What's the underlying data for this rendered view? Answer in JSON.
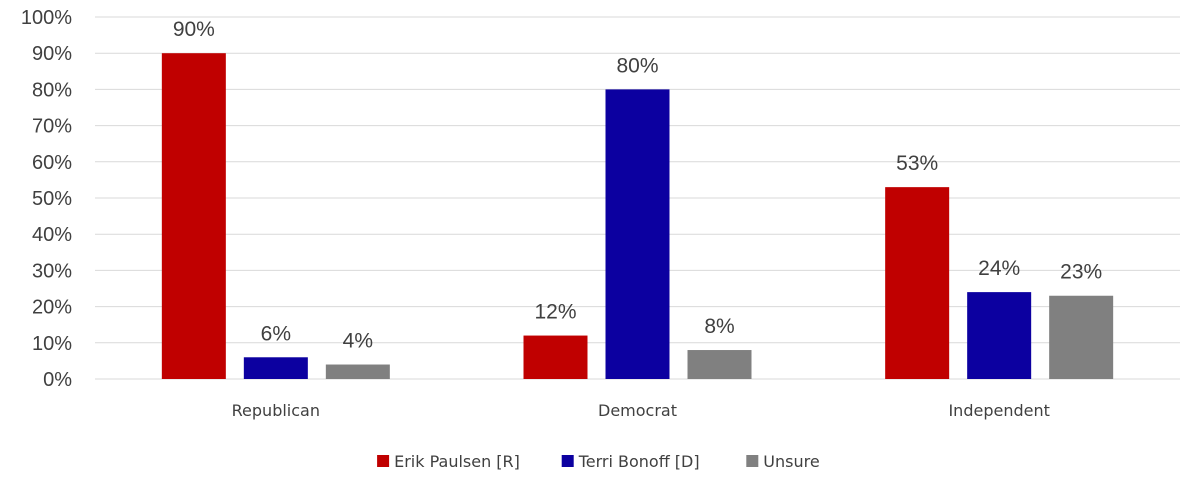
{
  "chart_data": {
    "type": "bar",
    "categories": [
      "Republican",
      "Democrat",
      "Independent"
    ],
    "series": [
      {
        "name": "Erik Paulsen [R]",
        "color": "#c00000",
        "values": [
          90,
          12,
          53
        ],
        "labels": [
          "90%",
          "12%",
          "53%"
        ]
      },
      {
        "name": "Terri Bonoff [D]",
        "color": "#0c00a0",
        "values": [
          6,
          80,
          24
        ],
        "labels": [
          "6%",
          "80%",
          "24%"
        ]
      },
      {
        "name": "Unsure",
        "color": "#808080",
        "values": [
          4,
          8,
          23
        ],
        "labels": [
          "4%",
          "8%",
          "23%"
        ]
      }
    ],
    "ylim": [
      0,
      100
    ],
    "yticks": [
      "0%",
      "10%",
      "20%",
      "30%",
      "40%",
      "50%",
      "60%",
      "70%",
      "80%",
      "90%",
      "100%"
    ],
    "grid": true,
    "legend": "bottom-center"
  }
}
